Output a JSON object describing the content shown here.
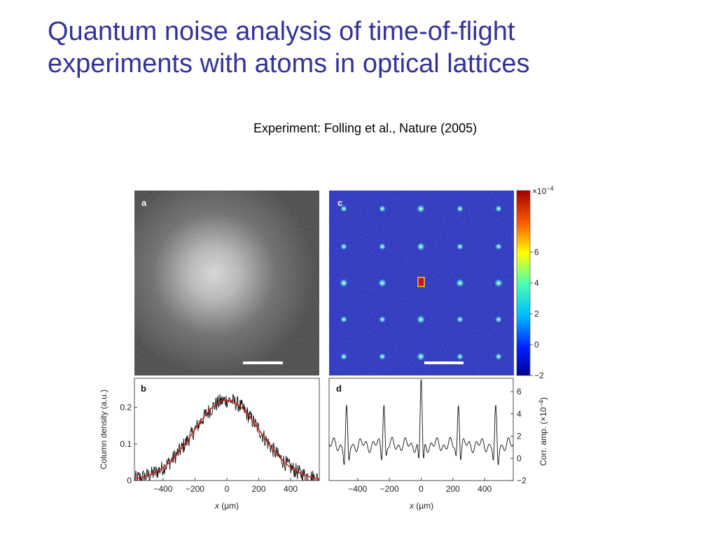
{
  "slide": {
    "title_line1": "Quantum noise analysis of time-of-flight",
    "title_line2": "experiments with atoms in optical lattices",
    "citation": "Experiment: Folling et al.,  Nature (2005)"
  },
  "colors": {
    "title": "#33339a",
    "lattice_background": "#2a2db8",
    "fit_curve": "#d9241f",
    "data_trace": "#111111"
  },
  "panels": {
    "a": {
      "label": "a",
      "content": "absorption image of atom cloud (grayscale)"
    },
    "c": {
      "label": "c",
      "content": "noise correlation map with Bragg-like peaks"
    }
  },
  "colorbar": {
    "exponent_label": "×10",
    "exponent_power": "−4",
    "ticks": [
      "6",
      "4",
      "2",
      "0",
      "−2"
    ],
    "tick_values": [
      6,
      4,
      2,
      0,
      -2
    ],
    "range": [
      -2,
      10
    ]
  },
  "chart_data": [
    {
      "type": "line",
      "panel_label": "b",
      "xlabel_italic": "x",
      "xlabel_unit": " (µm)",
      "ylabel": "Column density (a.u.)",
      "xlim": [
        -580,
        580
      ],
      "ylim": [
        0,
        0.28
      ],
      "xticks": [
        -400,
        -200,
        0,
        200,
        400
      ],
      "xtick_labels": [
        "−400",
        "−200",
        "0",
        "200",
        "400"
      ],
      "yticks": [
        0,
        0.1,
        0.2
      ],
      "ytick_labels": [
        "0",
        "0.1",
        "0.2"
      ],
      "series": [
        {
          "style": "noisy-data",
          "gaussian_fit": {
            "amplitude": 0.22,
            "center": 0,
            "sigma": 210
          },
          "noise_amplitude": 0.022
        },
        {
          "style": "fit",
          "gaussian_fit": {
            "amplitude": 0.22,
            "center": 0,
            "sigma": 210
          }
        }
      ]
    },
    {
      "type": "line",
      "panel_label": "d",
      "xlabel_italic": "x",
      "xlabel_unit": " (µm)",
      "ylabel": "Corr. amp. (×10",
      "ylabel_power": "−4",
      "ylabel_suffix": ")",
      "xlim": [
        -580,
        580
      ],
      "ylim": [
        -2,
        7.2
      ],
      "xticks": [
        -400,
        -200,
        0,
        200,
        400
      ],
      "xtick_labels": [
        "−400",
        "−200",
        "0",
        "200",
        "400"
      ],
      "yticks": [
        -2,
        0,
        2,
        4,
        6
      ],
      "ytick_labels": [
        "−2",
        "0",
        "2",
        "4",
        "6"
      ],
      "series": [
        {
          "style": "correlation",
          "baseline": 1.2,
          "peaks": [
            {
              "x": -470,
              "height": 4.2
            },
            {
              "x": -235,
              "height": 5.2
            },
            {
              "x": 0,
              "height": 7.2
            },
            {
              "x": 235,
              "height": 5.2
            },
            {
              "x": 470,
              "height": 4.2
            }
          ],
          "dips": [
            {
              "x": -470,
              "depth": -1.6
            },
            {
              "x": -235,
              "depth": -0.8
            },
            {
              "x": 0,
              "depth": -2.0
            },
            {
              "x": 235,
              "depth": -0.8
            },
            {
              "x": 470,
              "depth": -1.6
            }
          ]
        }
      ]
    }
  ]
}
